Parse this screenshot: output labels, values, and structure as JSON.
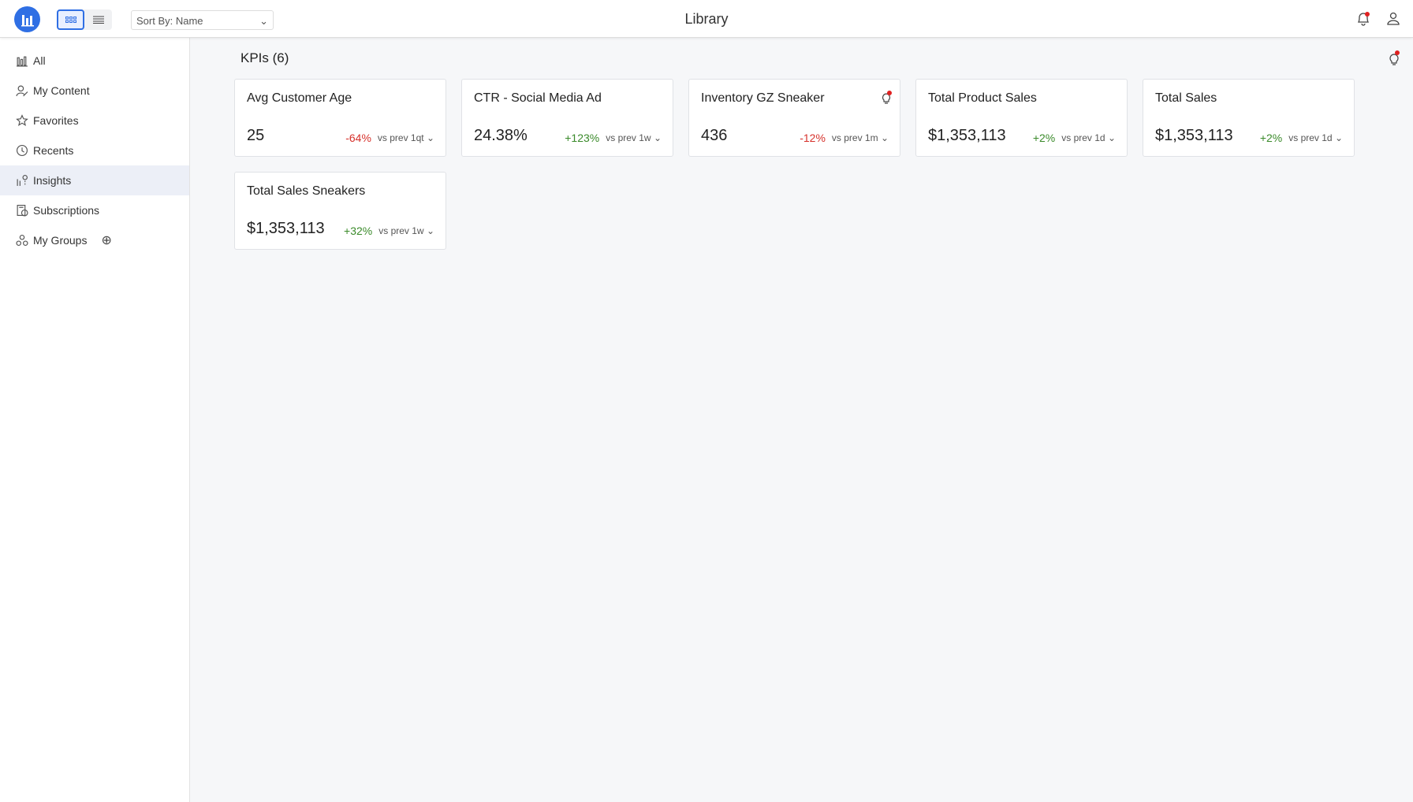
{
  "header": {
    "title": "Library",
    "sort_label": "Sort By: Name",
    "view_modes": [
      "grid",
      "list"
    ],
    "active_view": "grid"
  },
  "sidebar": {
    "items": [
      {
        "label": "All",
        "icon": "bar-chart-icon"
      },
      {
        "label": "My Content",
        "icon": "user-edit-icon"
      },
      {
        "label": "Favorites",
        "icon": "star-icon"
      },
      {
        "label": "Recents",
        "icon": "clock-icon"
      },
      {
        "label": "Insights",
        "icon": "insights-icon",
        "active": true
      },
      {
        "label": "Subscriptions",
        "icon": "subscription-icon"
      },
      {
        "label": "My Groups",
        "icon": "groups-icon"
      }
    ]
  },
  "main": {
    "heading": "KPIs (6)",
    "cards": [
      {
        "title": "Avg Customer Age",
        "value": "25",
        "change": "-64%",
        "trend": "neg",
        "period": "vs prev 1qt"
      },
      {
        "title": "CTR - Social Media Ad",
        "value": "24.38%",
        "change": "+123%",
        "trend": "pos",
        "period": "vs prev 1w"
      },
      {
        "title": "Inventory GZ Sneaker",
        "value": "436",
        "change": "-12%",
        "trend": "neg",
        "period": "vs prev 1m",
        "insight": true
      },
      {
        "title": "Total Product Sales",
        "value": "$1,353,113",
        "change": "+2%",
        "trend": "pos",
        "period": "vs prev 1d"
      },
      {
        "title": "Total Sales",
        "value": "$1,353,113",
        "change": "+2%",
        "trend": "pos",
        "period": "vs prev 1d"
      },
      {
        "title": "Total Sales Sneakers",
        "value": "$1,353,113",
        "change": "+32%",
        "trend": "pos",
        "period": "vs prev 1w"
      }
    ]
  },
  "colors": {
    "accent": "#2f6fe4",
    "positive": "#3a8a2a",
    "negative": "#d6312b",
    "alert": "#e02020"
  }
}
